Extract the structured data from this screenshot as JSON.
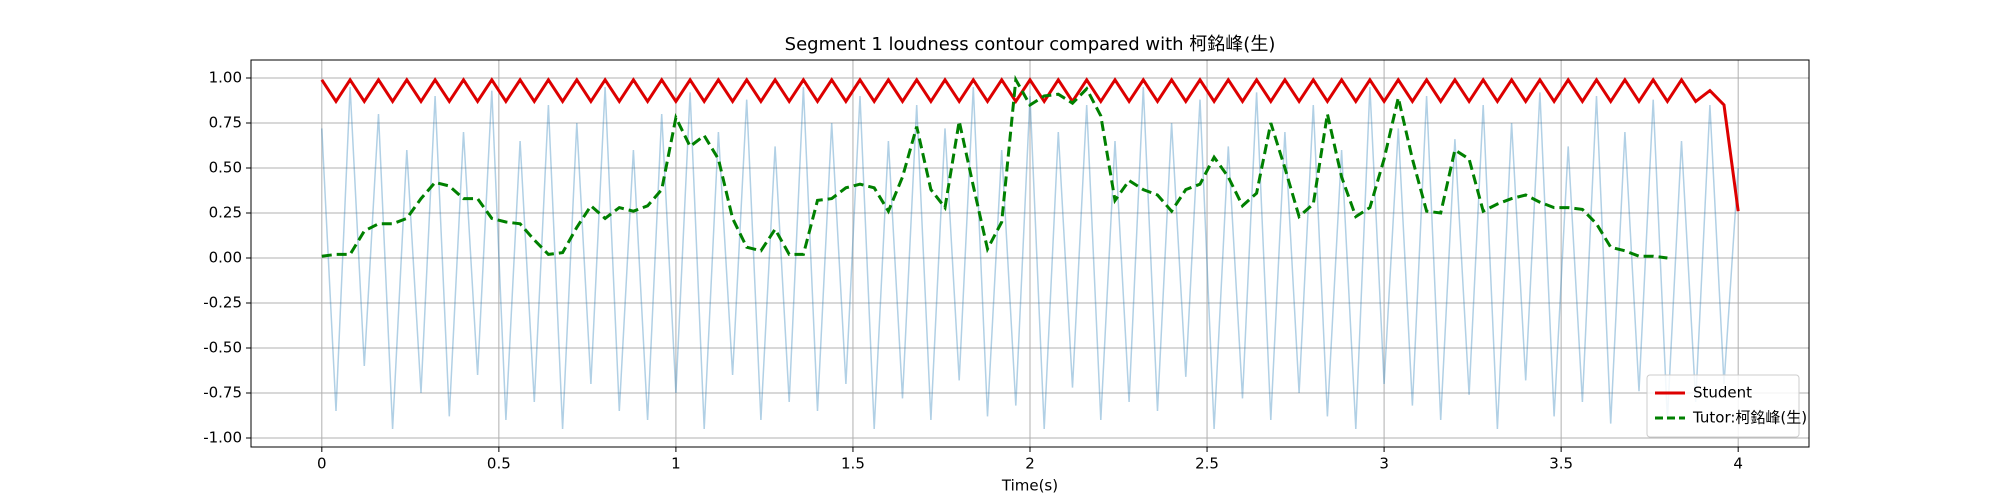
{
  "chart_data": {
    "type": "line",
    "title": "Segment 1 loudness contour compared with 柯銘峰(生)",
    "x_label": "Time(s)",
    "xlim": [
      -0.2,
      4.2
    ],
    "ylim": [
      -1.05,
      1.1
    ],
    "xticks": [
      0,
      0.5,
      1,
      1.5,
      2,
      2.5,
      3,
      3.5,
      4
    ],
    "yticks": [
      {
        "value": 1,
        "label": "1.00"
      },
      {
        "value": 0.75,
        "label": "0.75"
      },
      {
        "value": 0.5,
        "label": "0.50"
      },
      {
        "value": 0.25,
        "label": "0.25"
      },
      {
        "value": 0,
        "label": "0.00"
      },
      {
        "value": -0.25,
        "label": "-0.25"
      },
      {
        "value": -0.5,
        "label": "-0.50"
      },
      {
        "value": -0.75,
        "label": "-0.75"
      },
      {
        "value": -1,
        "label": "-1.00"
      }
    ],
    "grid": true,
    "legend": "lower right",
    "x": [
      0,
      0.04,
      0.08,
      0.12,
      0.16,
      0.2,
      0.24,
      0.28,
      0.32,
      0.36,
      0.4,
      0.44,
      0.48,
      0.52,
      0.56,
      0.6,
      0.64,
      0.68,
      0.72,
      0.76,
      0.8,
      0.84,
      0.88,
      0.92,
      0.96,
      1,
      1.04,
      1.08,
      1.12,
      1.16,
      1.2,
      1.24,
      1.28,
      1.32,
      1.36,
      1.4,
      1.44,
      1.48,
      1.52,
      1.56,
      1.6,
      1.64,
      1.68,
      1.72,
      1.76,
      1.8,
      1.84,
      1.88,
      1.92,
      1.96,
      2,
      2.04,
      2.08,
      2.12,
      2.16,
      2.2,
      2.24,
      2.28,
      2.32,
      2.36,
      2.4,
      2.44,
      2.48,
      2.52,
      2.56,
      2.6,
      2.64,
      2.68,
      2.72,
      2.76,
      2.8,
      2.84,
      2.88,
      2.92,
      2.96,
      3,
      3.04,
      3.08,
      3.12,
      3.16,
      3.2,
      3.24,
      3.28,
      3.32,
      3.36,
      3.4,
      3.44,
      3.48,
      3.52,
      3.56,
      3.6,
      3.64,
      3.68,
      3.72,
      3.76,
      3.8,
      3.84,
      3.88,
      3.92,
      3.96,
      4
    ],
    "waveform": {
      "color": "#1f77b4",
      "values": [
        0.72,
        -0.85,
        0.95,
        -0.6,
        0.8,
        -0.95,
        0.6,
        -0.75,
        0.9,
        -0.88,
        0.7,
        -0.65,
        0.93,
        -0.9,
        0.65,
        -0.8,
        0.85,
        -0.95,
        0.75,
        -0.7,
        0.95,
        -0.85,
        0.6,
        -0.9,
        0.8,
        -0.75,
        0.92,
        -0.95,
        0.7,
        -0.65,
        0.88,
        -0.9,
        0.62,
        -0.8,
        0.95,
        -0.85,
        0.75,
        -0.7,
        0.9,
        -0.95,
        0.65,
        -0.78,
        0.85,
        -0.9,
        0.72,
        -0.68,
        0.95,
        -0.88,
        0.6,
        -0.82,
        0.9,
        -0.95,
        0.7,
        -0.72,
        0.85,
        -0.9,
        0.65,
        -0.8,
        0.95,
        -0.85,
        0.75,
        -0.66,
        0.88,
        -0.95,
        0.62,
        -0.78,
        0.92,
        -0.9,
        0.7,
        -0.75,
        0.85,
        -0.88,
        0.6,
        -0.95,
        0.95,
        -0.7,
        0.72,
        -0.82,
        0.9,
        -0.9,
        0.66,
        -0.76,
        0.85,
        -0.95,
        0.75,
        -0.68,
        0.92,
        -0.88,
        0.62,
        -0.8,
        0.9,
        -0.92,
        0.7,
        -0.74,
        0.88,
        -0.9,
        0.65,
        -0.8,
        0.85,
        -0.7,
        0.5
      ]
    },
    "series": [
      {
        "name": "Student",
        "color": "#dd0000",
        "linestyle": "-",
        "values": [
          0.99,
          0.87,
          0.99,
          0.87,
          0.99,
          0.87,
          0.99,
          0.87,
          0.99,
          0.87,
          0.99,
          0.87,
          0.99,
          0.87,
          0.99,
          0.87,
          0.99,
          0.87,
          0.99,
          0.87,
          0.99,
          0.87,
          0.99,
          0.87,
          0.99,
          0.87,
          0.99,
          0.87,
          0.99,
          0.87,
          0.99,
          0.87,
          0.99,
          0.87,
          0.99,
          0.87,
          0.99,
          0.87,
          0.99,
          0.87,
          0.99,
          0.87,
          0.99,
          0.87,
          0.99,
          0.87,
          0.99,
          0.87,
          0.99,
          0.87,
          0.99,
          0.87,
          0.99,
          0.87,
          0.99,
          0.87,
          0.99,
          0.87,
          0.99,
          0.87,
          0.99,
          0.87,
          0.99,
          0.87,
          0.99,
          0.87,
          0.99,
          0.87,
          0.99,
          0.87,
          0.99,
          0.87,
          0.99,
          0.87,
          0.99,
          0.87,
          0.99,
          0.87,
          0.99,
          0.87,
          0.99,
          0.87,
          0.99,
          0.87,
          0.99,
          0.87,
          0.99,
          0.87,
          0.99,
          0.87,
          0.99,
          0.87,
          0.99,
          0.87,
          0.99,
          0.87,
          0.99,
          0.87,
          0.93,
          0.85,
          0.26
        ]
      },
      {
        "name": "Tutor:柯銘峰(生)",
        "color": "#008000",
        "linestyle": "--",
        "values": [
          0.01,
          0.02,
          0.02,
          0.15,
          0.19,
          0.19,
          0.22,
          0.33,
          0.42,
          0.4,
          0.33,
          0.33,
          0.22,
          0.2,
          0.19,
          0.1,
          0.02,
          0.03,
          0.17,
          0.29,
          0.22,
          0.28,
          0.26,
          0.29,
          0.38,
          0.78,
          0.62,
          0.68,
          0.55,
          0.22,
          0.06,
          0.04,
          0.16,
          0.02,
          0.02,
          0.32,
          0.33,
          0.39,
          0.41,
          0.39,
          0.26,
          0.45,
          0.73,
          0.38,
          0.28,
          0.76,
          0.4,
          0.05,
          0.2,
          0.99,
          0.85,
          0.9,
          0.91,
          0.86,
          0.94,
          0.79,
          0.32,
          0.43,
          0.38,
          0.35,
          0.26,
          0.38,
          0.41,
          0.56,
          0.45,
          0.29,
          0.36,
          0.75,
          0.5,
          0.23,
          0.3,
          0.8,
          0.45,
          0.23,
          0.28,
          0.55,
          0.89,
          0.55,
          0.26,
          0.25,
          0.6,
          0.55,
          0.26,
          0.3,
          0.33,
          0.35,
          0.31,
          0.28,
          0.28,
          0.27,
          0.19,
          0.06,
          0.04,
          0.01,
          0.01,
          0,
          null,
          null,
          null,
          null,
          null
        ]
      }
    ]
  }
}
